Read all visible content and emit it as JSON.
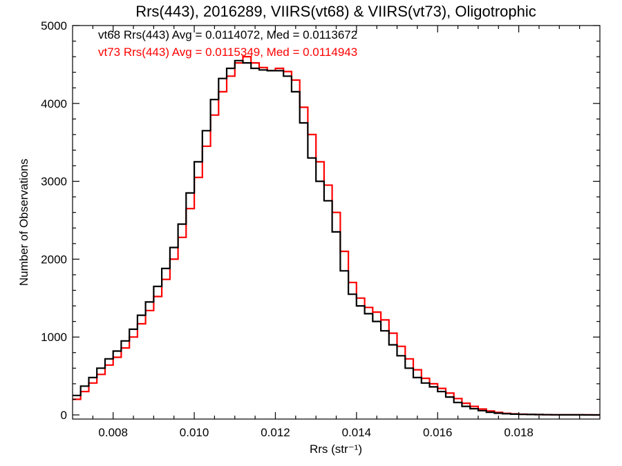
{
  "chart_data": {
    "type": "line",
    "title": "Rrs(443), 2016289, VIIRS(vt68) & VIIRS(vt73), Oligotrophic",
    "xlabel": "Rrs (str⁻¹)",
    "ylabel": "Number of Observations",
    "xlim": [
      0.007,
      0.02
    ],
    "ylim": [
      0,
      5000
    ],
    "x_ticks": [
      0.008,
      0.01,
      0.012,
      0.014,
      0.016,
      0.018
    ],
    "x_tick_labels": [
      "0.008",
      "0.010",
      "0.012",
      "0.014",
      "0.016",
      "0.018"
    ],
    "y_ticks": [
      0,
      1000,
      2000,
      3000,
      4000,
      5000
    ],
    "y_tick_labels": [
      "0",
      "1000",
      "2000",
      "3000",
      "4000",
      "5000"
    ],
    "grid": false,
    "legend_placement": "top-left",
    "x": [
      0.007,
      0.0072,
      0.0074,
      0.0076,
      0.0078,
      0.008,
      0.0082,
      0.0084,
      0.0086,
      0.0088,
      0.009,
      0.0092,
      0.0094,
      0.0096,
      0.0098,
      0.01,
      0.0102,
      0.0104,
      0.0106,
      0.0108,
      0.011,
      0.0112,
      0.0114,
      0.0116,
      0.0118,
      0.012,
      0.0122,
      0.0124,
      0.0126,
      0.0128,
      0.013,
      0.0132,
      0.0134,
      0.0136,
      0.0138,
      0.014,
      0.0142,
      0.0144,
      0.0146,
      0.0148,
      0.015,
      0.0152,
      0.0154,
      0.0156,
      0.0158,
      0.016,
      0.0162,
      0.0164,
      0.0166,
      0.0168,
      0.017,
      0.0172,
      0.0174,
      0.0176,
      0.0178,
      0.018,
      0.0182,
      0.0184,
      0.0186,
      0.0188,
      0.019,
      0.0192,
      0.0194,
      0.0196,
      0.0198,
      0.02
    ],
    "series": [
      {
        "name": "vt68",
        "color": "#000000",
        "values": [
          250,
          370,
          480,
          600,
          720,
          820,
          950,
          1100,
          1280,
          1450,
          1650,
          1880,
          2150,
          2450,
          2850,
          3250,
          3650,
          4050,
          4320,
          4450,
          4550,
          4520,
          4450,
          4430,
          4420,
          4420,
          4350,
          4150,
          3750,
          3300,
          3000,
          2750,
          2350,
          1850,
          1550,
          1400,
          1300,
          1200,
          1080,
          900,
          760,
          600,
          480,
          410,
          360,
          300,
          230,
          160,
          110,
          80,
          55,
          35,
          22,
          15,
          10,
          7,
          5,
          4,
          3,
          2,
          1,
          1,
          1,
          0,
          0,
          0
        ]
      },
      {
        "name": "vt73",
        "color": "#ff0000",
        "values": [
          200,
          300,
          410,
          520,
          640,
          740,
          860,
          1000,
          1170,
          1340,
          1520,
          1740,
          2000,
          2280,
          2650,
          3050,
          3450,
          3850,
          4150,
          4350,
          4520,
          4600,
          4520,
          4460,
          4420,
          4450,
          4410,
          4300,
          3950,
          3600,
          3250,
          2950,
          2600,
          2100,
          1700,
          1500,
          1380,
          1320,
          1220,
          1050,
          880,
          720,
          580,
          470,
          400,
          340,
          280,
          210,
          150,
          110,
          75,
          50,
          32,
          20,
          13,
          9,
          6,
          4,
          3,
          2,
          1,
          1,
          1,
          1,
          0,
          0
        ]
      }
    ],
    "legend": [
      {
        "label": "vt68 Rrs(443) Avg = 0.0114072, Med = 0.0113672",
        "color": "#000000"
      },
      {
        "label": "vt73 Rrs(443) Avg = 0.0115349, Med = 0.0114943",
        "color": "#ff0000"
      }
    ]
  }
}
